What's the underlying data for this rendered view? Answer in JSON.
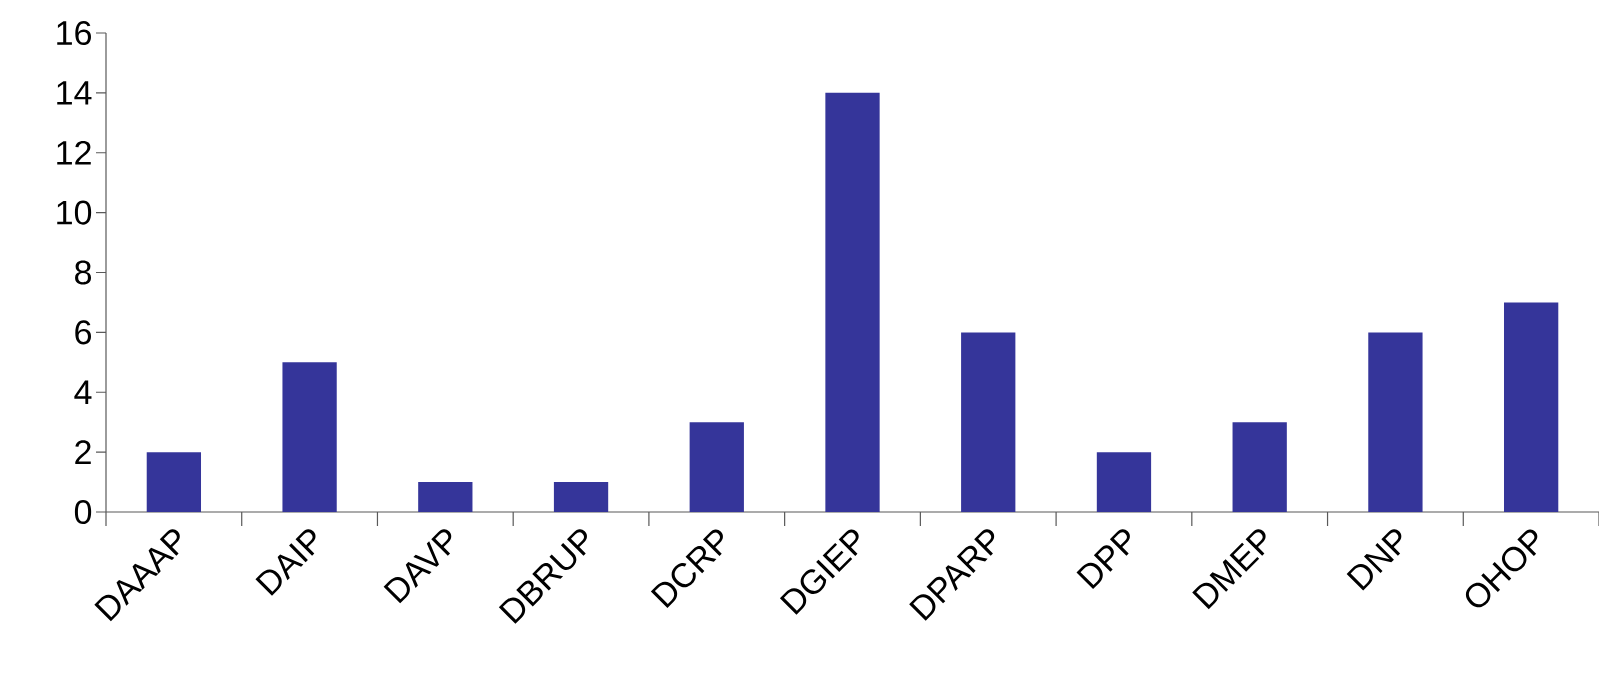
{
  "chart_data": {
    "type": "bar",
    "categories": [
      "DAAAP",
      "DAIP",
      "DAVP",
      "DBRUP",
      "DCRP",
      "DGIEP",
      "DPARP",
      "DPP",
      "DMEP",
      "DNP",
      "OHOP"
    ],
    "values": [
      2,
      5,
      1,
      1,
      3,
      14,
      6,
      2,
      3,
      6,
      7
    ],
    "color": "#35359a",
    "ylim": [
      0,
      16
    ],
    "yticks": [
      0,
      2,
      4,
      6,
      8,
      10,
      12,
      14,
      16
    ]
  }
}
